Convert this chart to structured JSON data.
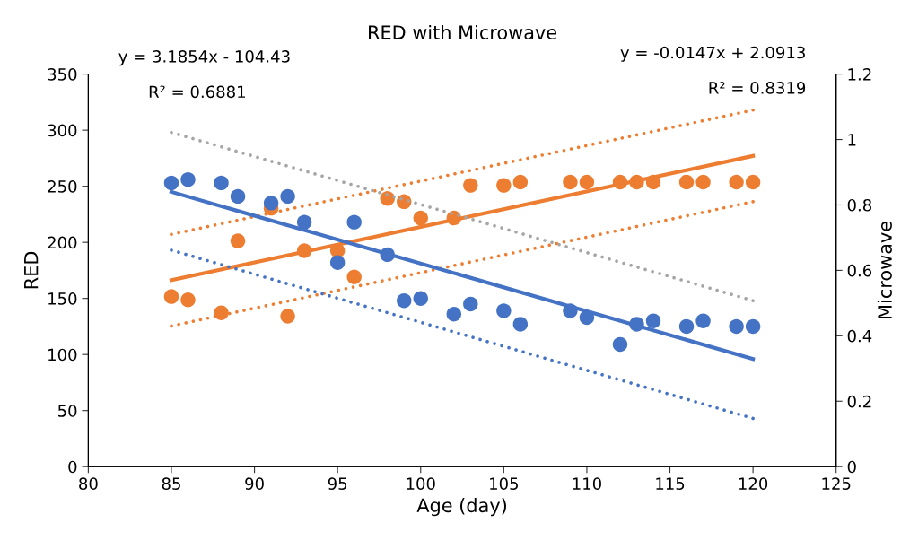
{
  "chart_data": {
    "type": "scatter",
    "title": "RED with Microwave",
    "xlabel": "Age (day)",
    "ylabel": "RED",
    "y2label": "Microwave",
    "xlim": [
      80,
      125
    ],
    "xticks": [
      80,
      85,
      90,
      95,
      100,
      105,
      110,
      115,
      120,
      125
    ],
    "ylim": [
      0,
      350
    ],
    "yticks": [
      0,
      50,
      100,
      150,
      200,
      250,
      300,
      350
    ],
    "y2lim": [
      0,
      1.2
    ],
    "y2ticks": [
      0,
      0.2,
      0.4,
      0.6,
      0.8,
      1,
      1.2
    ],
    "grid": false,
    "legend": false,
    "annotations": [
      "y = 3.1854x - 104.43",
      "R² = 0.6881",
      "y = -0.0147x + 2.0913",
      "R² = 0.8319"
    ],
    "series": [
      {
        "marker": "circle",
        "color": "#4472c4",
        "axis": "y",
        "x": [
          85,
          86,
          88,
          89,
          91,
          92,
          93,
          95,
          96,
          98,
          99,
          100,
          102,
          103,
          105,
          106,
          109,
          110,
          112,
          113,
          114,
          116,
          117,
          119,
          120
        ],
        "values": [
          253,
          256,
          253,
          241,
          235,
          241,
          218,
          182,
          218,
          189,
          148,
          150,
          136,
          145,
          139,
          127,
          139,
          133,
          109,
          127,
          130,
          125,
          130,
          125,
          125
        ]
      },
      {
        "marker": "circle",
        "color": "#ed7d31",
        "axis": "y2",
        "x": [
          85,
          86,
          88,
          89,
          91,
          92,
          93,
          95,
          96,
          98,
          99,
          100,
          102,
          103,
          105,
          106,
          109,
          110,
          112,
          113,
          114,
          116,
          117,
          119,
          120
        ],
        "values": [
          0.52,
          0.51,
          0.47,
          0.69,
          0.79,
          0.46,
          0.66,
          0.66,
          0.58,
          0.82,
          0.81,
          0.76,
          0.76,
          0.86,
          0.86,
          0.87,
          0.87,
          0.87,
          0.87,
          0.87,
          0.87,
          0.87,
          0.87,
          0.87,
          0.87
        ]
      },
      {
        "type": "line",
        "color": "#4472c4",
        "axis": "y",
        "line_style": "solid",
        "x": [
          85,
          120
        ],
        "values": [
          245,
          96
        ]
      },
      {
        "type": "line",
        "color": "#4472c4",
        "axis": "y",
        "line_style": "dotted",
        "x": [
          85,
          120
        ],
        "values": [
          193,
          43
        ]
      },
      {
        "type": "line",
        "color": "#a5a5a5",
        "axis": "y",
        "line_style": "dotted",
        "x": [
          85,
          120
        ],
        "values": [
          298,
          148
        ]
      },
      {
        "type": "line",
        "color": "#ed7d31",
        "axis": "y2",
        "line_style": "solid",
        "x": [
          85,
          120
        ],
        "values": [
          0.57,
          0.95
        ]
      },
      {
        "type": "line",
        "color": "#ed7d31",
        "axis": "y2",
        "line_style": "dotted",
        "x": [
          85,
          120
        ],
        "values": [
          0.71,
          1.09
        ]
      },
      {
        "type": "line",
        "color": "#ed7d31",
        "axis": "y2",
        "line_style": "dotted",
        "x": [
          85,
          120
        ],
        "values": [
          0.43,
          0.81
        ]
      }
    ]
  }
}
